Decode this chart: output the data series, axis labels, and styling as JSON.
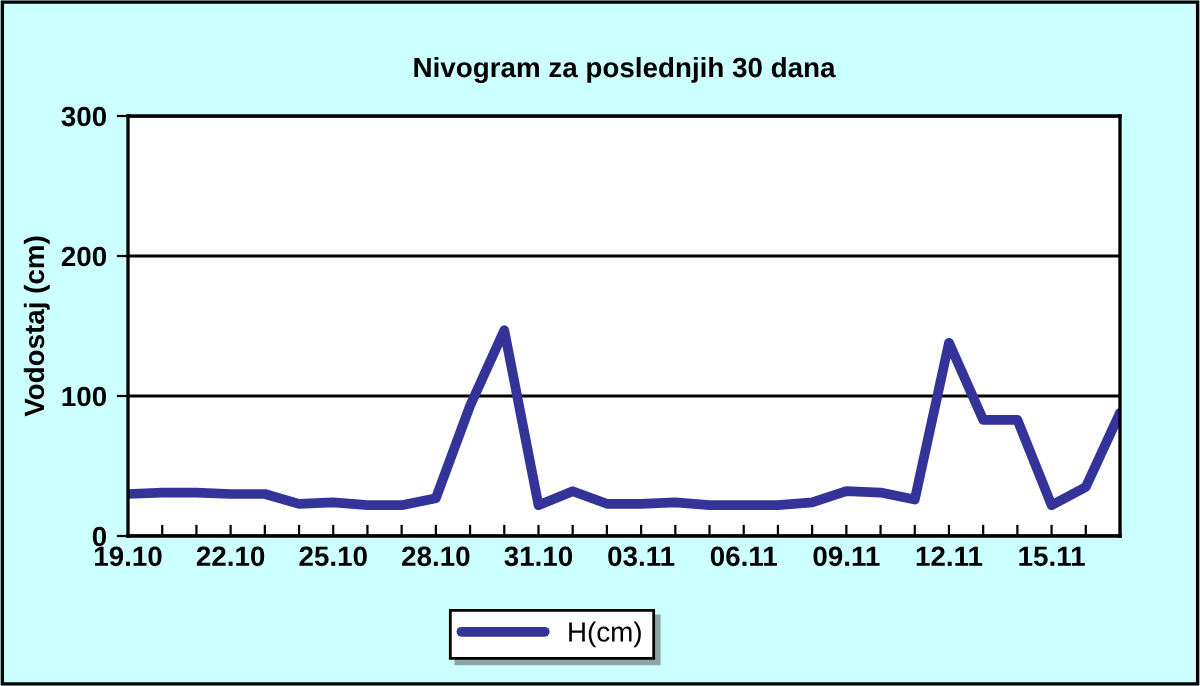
{
  "chart_data": {
    "type": "line",
    "title": "Nivogram za poslednjih 30 dana",
    "ylabel": "Vodostaj (cm)",
    "categories": [
      "19.10",
      null,
      null,
      "22.10",
      null,
      null,
      "25.10",
      null,
      null,
      "28.10",
      null,
      null,
      "31.10",
      null,
      null,
      "03.11",
      null,
      null,
      "06.11",
      null,
      null,
      "09.11",
      null,
      null,
      "12.11",
      null,
      null,
      "15.11",
      null,
      null
    ],
    "series": [
      {
        "name": "H(cm)",
        "color": "#333399",
        "values": [
          30,
          31,
          31,
          30,
          30,
          23,
          24,
          22,
          22,
          27,
          93,
          147,
          22,
          32,
          23,
          23,
          24,
          22,
          22,
          22,
          24,
          32,
          31,
          26,
          138,
          83,
          83,
          22,
          35,
          88
        ]
      }
    ],
    "ylim": [
      0,
      300
    ],
    "yticks": [
      0,
      100,
      200,
      300
    ],
    "grid": "y",
    "legend": "bottom",
    "marker": "none",
    "line_style": "solid"
  }
}
